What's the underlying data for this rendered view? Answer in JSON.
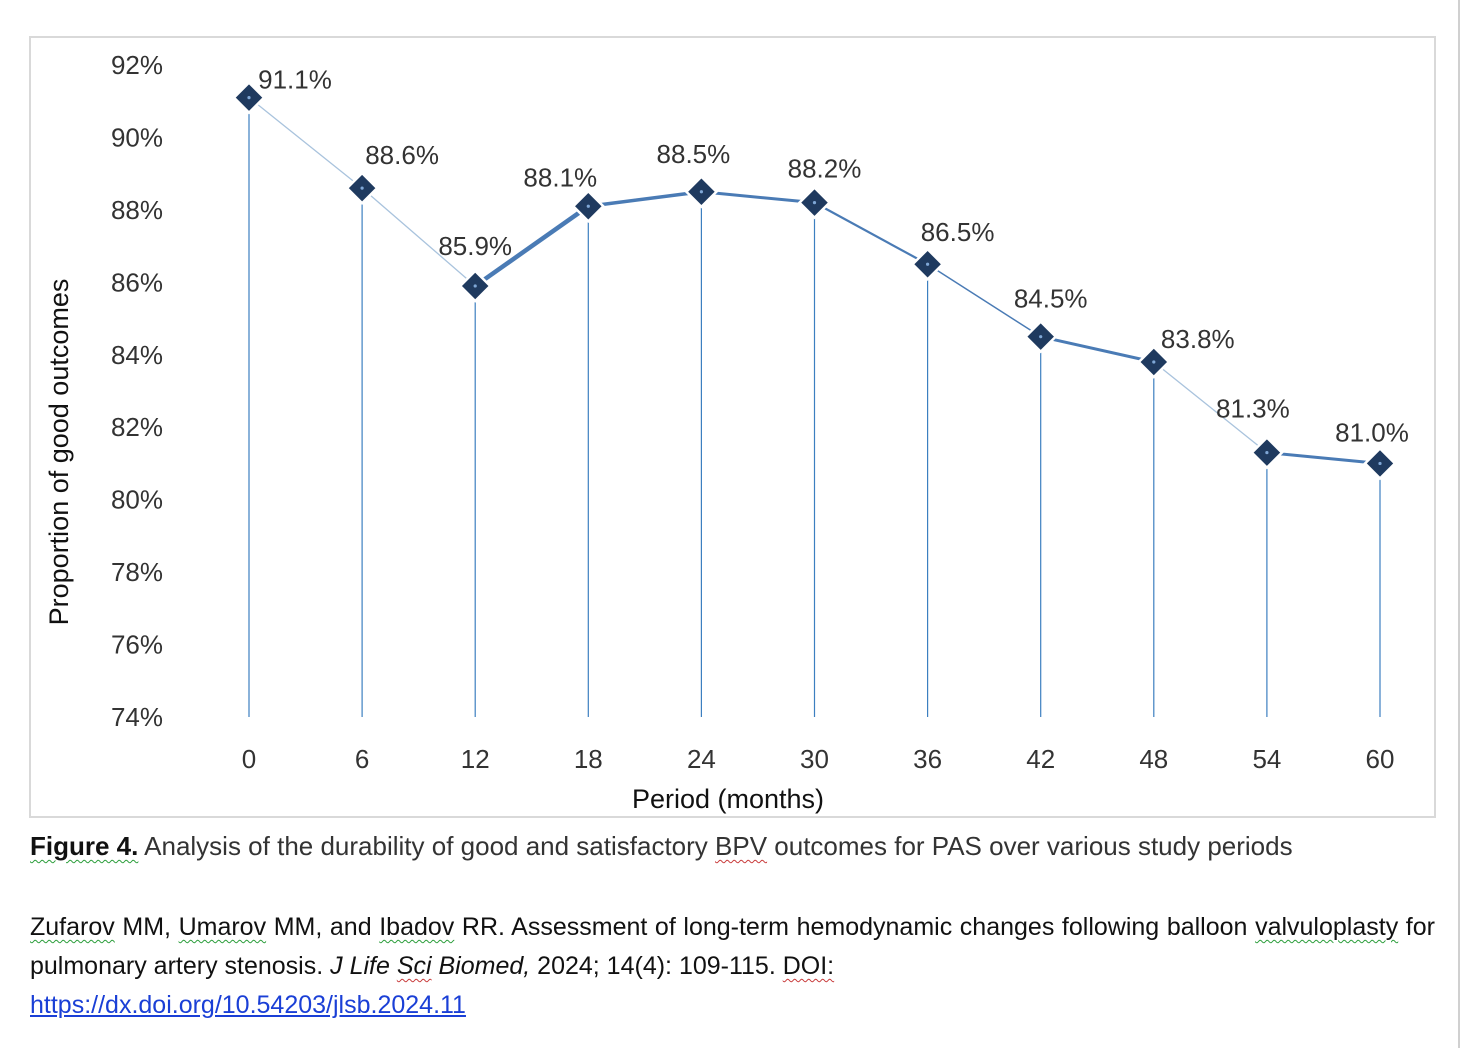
{
  "chart_data": {
    "type": "line",
    "title": "",
    "xlabel": "Period (months)",
    "ylabel": "Proportion of good outcomes",
    "categories": [
      "0",
      "6",
      "12",
      "18",
      "24",
      "30",
      "36",
      "42",
      "48",
      "54",
      "60"
    ],
    "series": [
      {
        "values": [
          91.1,
          88.6,
          85.9,
          88.1,
          88.5,
          88.2,
          86.5,
          84.5,
          83.8,
          81.3,
          81.0
        ],
        "data_labels": [
          "91.1%",
          "88.6%",
          "85.9%",
          "88.1%",
          "88.5%",
          "88.2%",
          "86.5%",
          "84.5%",
          "83.8%",
          "81.3%",
          "81.0%"
        ]
      }
    ],
    "y_ticks": [
      "74%",
      "76%",
      "78%",
      "80%",
      "82%",
      "84%",
      "86%",
      "88%",
      "90%",
      "92%"
    ],
    "ylim": [
      74,
      92
    ],
    "grid": false,
    "drop_lines": true,
    "marker": "diamond",
    "colors": {
      "line": "#4a7bb5",
      "line_light": "#a9c3dd",
      "marker": "#1f3a5f",
      "drop_line": "#3c7fc0"
    }
  },
  "caption": {
    "figure_label": "Figure 4.",
    "text": " Analysis of the durability of good and satisfactory ",
    "bpv": "BPV",
    "text_end": " outcomes for PAS over various study periods"
  },
  "citation": {
    "authors_1": "Zufarov",
    "authors_2": " MM, ",
    "authors_3": "Umarov",
    "authors_4": " MM, and ",
    "authors_5": "Ibadov",
    "authors_6": " RR. Assessment of long-term hemodynamic changes following balloon ",
    "title_1": "valvuloplasty",
    "title_2": " for pulmonary artery stenosis. ",
    "journal_1": "J Life ",
    "journal_2": "Sci",
    "journal_3": " Biomed,",
    "details": " 2024; 14(4): 109-115. ",
    "doi_label": "DOI:",
    "doi_url": "https://dx.doi.org/10.54203/jlsb.2024.11"
  }
}
